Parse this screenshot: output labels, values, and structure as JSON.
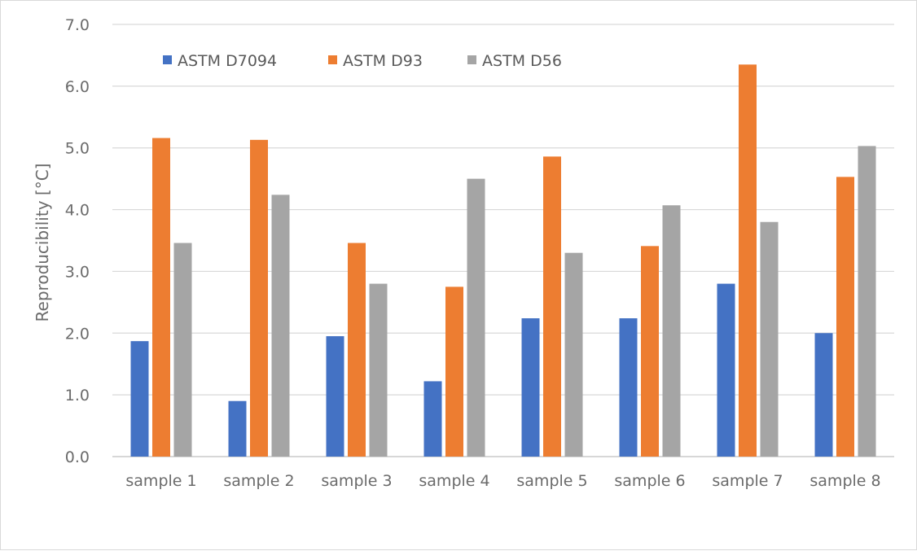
{
  "chart_data": {
    "type": "bar",
    "title": "",
    "xlabel": "",
    "ylabel": "Reproducibility [°C]",
    "ylim": [
      0,
      7
    ],
    "yticks": [
      "0.0",
      "1.0",
      "2.0",
      "3.0",
      "4.0",
      "5.0",
      "6.0",
      "7.0"
    ],
    "grid": true,
    "legend_position": "top-left",
    "categories": [
      "sample 1",
      "sample 2",
      "sample 3",
      "sample 4",
      "sample 5",
      "sample 6",
      "sample 7",
      "sample 8"
    ],
    "series": [
      {
        "name": "ASTM D7094",
        "color": "#4472c4",
        "values": [
          1.87,
          0.9,
          1.95,
          1.22,
          2.24,
          2.24,
          2.8,
          2.0
        ]
      },
      {
        "name": "ASTM D93",
        "color": "#ed7d31",
        "values": [
          5.16,
          5.13,
          3.46,
          2.75,
          4.86,
          3.41,
          6.35,
          4.53
        ]
      },
      {
        "name": "ASTM D56",
        "color": "#a5a5a5",
        "values": [
          3.46,
          4.24,
          2.8,
          4.5,
          3.3,
          4.07,
          3.8,
          5.03
        ]
      }
    ]
  }
}
